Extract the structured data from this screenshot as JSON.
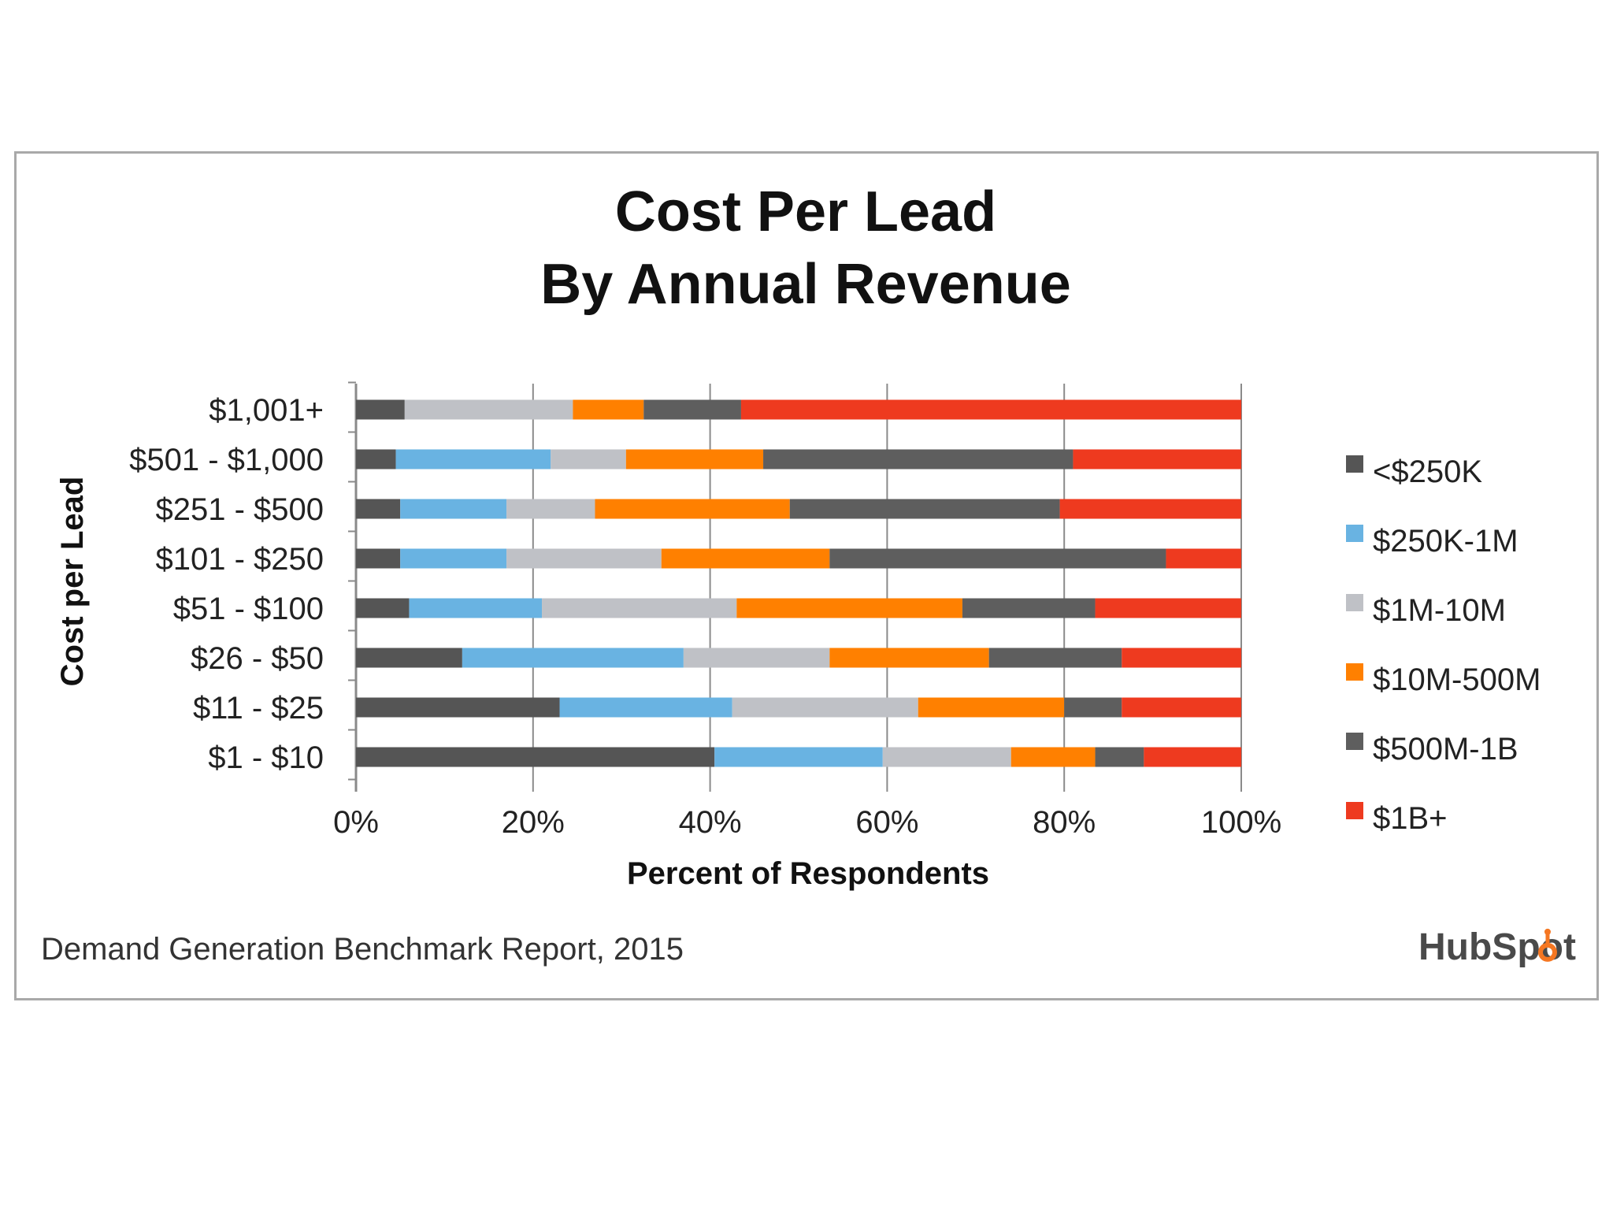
{
  "chart_data": {
    "type": "bar",
    "orientation": "horizontal",
    "stacked": true,
    "title": [
      "Cost Per Lead",
      "By Annual Revenue"
    ],
    "xlabel": "Percent of Respondents",
    "ylabel": "Cost per Lead",
    "xlim": [
      0,
      100
    ],
    "x_ticks": [
      "0%",
      "20%",
      "40%",
      "60%",
      "80%",
      "100%"
    ],
    "grid": true,
    "legend_position": "right",
    "categories": [
      "$1,001+",
      "$501 - $1,000",
      "$251 - $500",
      "$101 - $250",
      "$51 - $100",
      "$26 - $50",
      "$11 - $25",
      "$1 - $10"
    ],
    "series": [
      {
        "name": "<$250K",
        "color": "#555555",
        "values": [
          5.5,
          4.5,
          5,
          5,
          6,
          12,
          23,
          40.5
        ]
      },
      {
        "name": "$250K-1M",
        "color": "#69b3e2",
        "values": [
          0,
          17.5,
          12,
          12,
          15,
          25,
          19.5,
          19
        ]
      },
      {
        "name": "$1M-10M",
        "color": "#bfc1c6",
        "values": [
          19,
          8.5,
          10,
          17.5,
          22,
          16.5,
          21,
          14.5
        ]
      },
      {
        "name": "$10M-500M",
        "color": "#ff8000",
        "values": [
          8,
          15.5,
          22,
          19,
          25.5,
          18,
          16.5,
          9.5
        ]
      },
      {
        "name": "$500M-1B",
        "color": "#5e5e5e",
        "values": [
          11,
          35,
          30.5,
          38,
          15,
          15,
          6.5,
          5.5
        ]
      },
      {
        "name": "$1B+",
        "color": "#ee3a1f",
        "values": [
          56.5,
          19,
          20.5,
          8.5,
          16.5,
          13.5,
          13.5,
          11
        ]
      }
    ]
  },
  "footer": {
    "source": "Demand Generation Benchmark Report, 2015",
    "logo": "HubSpot"
  },
  "colors": {
    "frame_border": "#a9a9a9",
    "gridline": "#8a8a8a",
    "logo_accent": "#f57722"
  }
}
